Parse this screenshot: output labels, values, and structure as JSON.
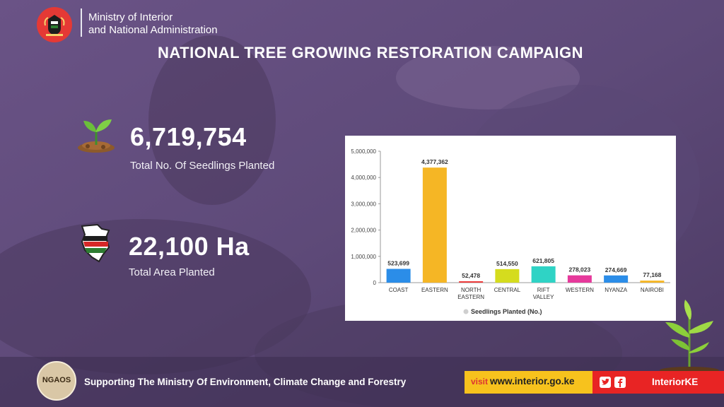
{
  "header": {
    "ministry_line1": "Ministry of Interior",
    "ministry_line2": "and National Administration",
    "campaign_title": "NATIONAL TREE GROWING RESTORATION CAMPAIGN",
    "emblem_icon": "kenya-coat-of-arms-icon"
  },
  "stats": {
    "seedlings_value": "6,719,754",
    "seedlings_label": "Total No. Of Seedlings Planted",
    "seedlings_icon": "seedling-icon",
    "area_value": "22,100 Ha",
    "area_label": "Total Area Planted",
    "area_icon": "kenya-map-icon"
  },
  "chart_data": {
    "type": "bar",
    "categories": [
      [
        "COAST"
      ],
      [
        "EASTERN"
      ],
      [
        "NORTH",
        "EASTERN"
      ],
      [
        "CENTRAL"
      ],
      [
        "RIFT",
        "VALLEY"
      ],
      [
        "WESTERN"
      ],
      [
        "NYANZA"
      ],
      [
        "NAIROBI"
      ]
    ],
    "values": [
      523699,
      4377362,
      52478,
      514550,
      621805,
      278023,
      274669,
      77168
    ],
    "value_labels": [
      "523,699",
      "4,377,362",
      "52,478",
      "514,550",
      "621,805",
      "278,023",
      "274,669",
      "77,168"
    ],
    "colors": [
      "#2b8de8",
      "#f5b625",
      "#ee3a3a",
      "#d5dc1e",
      "#2fd3c5",
      "#e6399b",
      "#2b8de8",
      "#f5b625"
    ],
    "yticks": [
      0,
      1000000,
      2000000,
      3000000,
      4000000,
      5000000
    ],
    "ytick_labels": [
      "0",
      "1,000,000",
      "2,000,000",
      "3,000,000",
      "4,000,000",
      "5,000,000"
    ],
    "ylim": [
      0,
      5000000
    ],
    "legend": "Seedlings Planted (No.)",
    "legend_position": "bottom",
    "grid": false
  },
  "footer": {
    "ngaos_label": "NGAOS",
    "supporting_text": "Supporting The Ministry Of Environment, Climate Change and Forestry",
    "visit_label": "visit",
    "website": "www.interior.go.ke",
    "social_icons": [
      "twitter-icon",
      "facebook-icon"
    ],
    "social_handle": "InteriorKE"
  },
  "colors": {
    "overlay": "#55416f",
    "visit_bg": "#f7c21d",
    "social_bg": "#e82424",
    "emblem_bg": "#e53935"
  }
}
